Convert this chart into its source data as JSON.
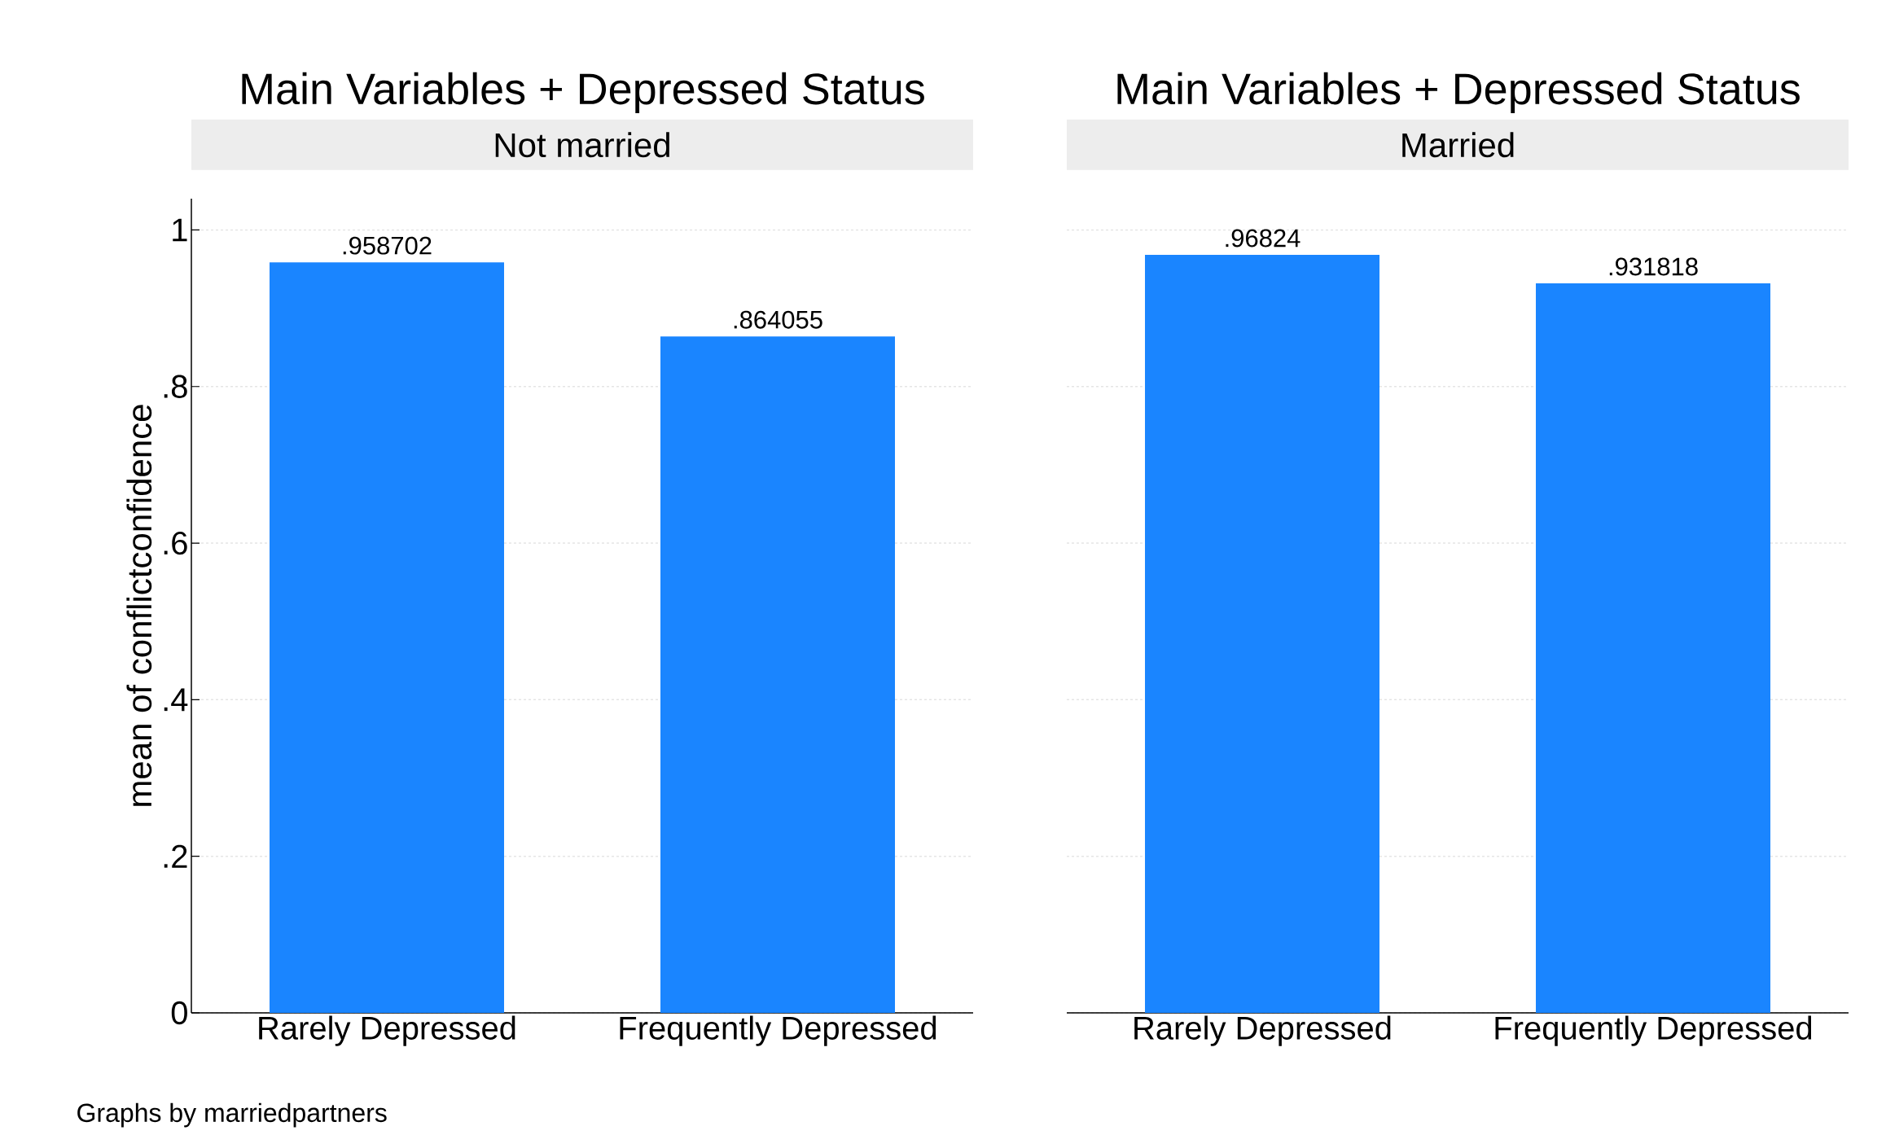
{
  "chart_data": [
    {
      "type": "bar",
      "title": "Main Variables + Depressed Status",
      "subtitle": "Not married",
      "ylabel": "mean of conflictconfidence",
      "categories": [
        "Rarely Depressed",
        "Frequently Depressed"
      ],
      "values": [
        0.958702,
        0.864055
      ],
      "value_labels": [
        ".958702",
        ".864055"
      ],
      "color": "#1a85ff",
      "ylim": [
        0,
        1.04
      ],
      "yticks": [
        0,
        {
          "value": 0.2,
          "label": ".2"
        },
        {
          "value": 0.4,
          "label": ".4"
        },
        {
          "value": 0.6,
          "label": ".6"
        },
        {
          "value": 0.8,
          "label": ".8"
        },
        1
      ],
      "grid": "y",
      "annotations": [
        "Graphs by marriedpartners"
      ]
    },
    {
      "type": "bar",
      "title": "Main Variables + Depressed Status",
      "subtitle": "Married",
      "categories": [
        "Rarely Depressed",
        "Frequently Depressed"
      ],
      "values": [
        0.96824,
        0.931818
      ],
      "value_labels": [
        ".96824",
        ".931818"
      ],
      "color": "#1a85ff",
      "ylim": [
        0,
        1
      ],
      "yticks": [
        {
          "value": 0,
          "label": null
        },
        {
          "value": 0.2,
          "label": null
        },
        {
          "value": 0.4,
          "label": null
        },
        {
          "value": 0.6,
          "label": null
        },
        {
          "value": 0.8,
          "label": null
        },
        {
          "value": 1,
          "label": null
        }
      ],
      "grid": "y",
      "tick_labels": "x"
    }
  ]
}
